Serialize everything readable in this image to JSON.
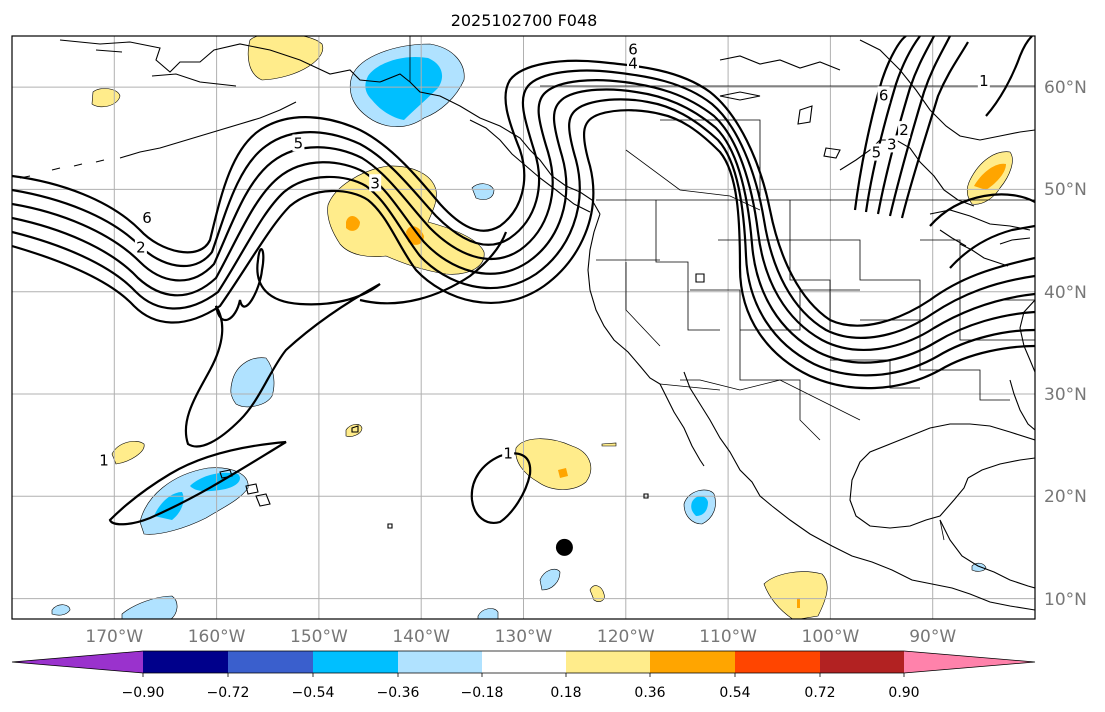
{
  "title": "2025102700 F048",
  "map": {
    "lon_min": -180,
    "lon_max": -80,
    "lat_min": 8,
    "lat_max": 65,
    "gridlines": true,
    "lon_ticks": [
      {
        "value": -170,
        "label": "170°W"
      },
      {
        "value": -160,
        "label": "160°W"
      },
      {
        "value": -150,
        "label": "150°W"
      },
      {
        "value": -140,
        "label": "140°W"
      },
      {
        "value": -130,
        "label": "130°W"
      },
      {
        "value": -120,
        "label": "120°W"
      },
      {
        "value": -110,
        "label": "110°W"
      },
      {
        "value": -100,
        "label": "100°W"
      },
      {
        "value": -90,
        "label": "90°W"
      }
    ],
    "lat_ticks": [
      {
        "value": 60,
        "label": "60°N"
      },
      {
        "value": 50,
        "label": "50°N"
      },
      {
        "value": 40,
        "label": "40°N"
      },
      {
        "value": 30,
        "label": "30°N"
      },
      {
        "value": 20,
        "label": "20°N"
      },
      {
        "value": 10,
        "label": "10°N"
      }
    ],
    "marker": {
      "name": "storm-position-marker",
      "lon": -126,
      "lat": 15,
      "color": "#000000"
    },
    "contour_labels": [
      {
        "text": "6",
        "lon": -166.8,
        "lat": 47.2
      },
      {
        "text": "2",
        "lon": -167.4,
        "lat": 44.3
      },
      {
        "text": "5",
        "lon": -152,
        "lat": 54.5
      },
      {
        "text": "3",
        "lon": -144.5,
        "lat": 50.6
      },
      {
        "text": "6",
        "lon": -119.3,
        "lat": 63.7
      },
      {
        "text": "4",
        "lon": -119.3,
        "lat": 62.3
      },
      {
        "text": "1",
        "lon": -171,
        "lat": 23.5
      },
      {
        "text": "1",
        "lon": -131.5,
        "lat": 24.2
      },
      {
        "text": "6",
        "lon": -94.8,
        "lat": 59.2
      },
      {
        "text": "5",
        "lon": -95.5,
        "lat": 53.6
      },
      {
        "text": "3",
        "lon": -94,
        "lat": 54.4
      },
      {
        "text": "2",
        "lon": -92.8,
        "lat": 55.8
      },
      {
        "text": "1",
        "lon": -85,
        "lat": 60.6
      }
    ]
  },
  "colorbar": {
    "colors": [
      "#9a32cd",
      "#00008b",
      "#3a5fcd",
      "#00bfff",
      "#b0e2ff",
      "#ffffff",
      "#ffec8b",
      "#ffa500",
      "#ff4500",
      "#b22222",
      "#ff82ab"
    ],
    "ticks": [
      "−0.90",
      "−0.72",
      "−0.54",
      "−0.36",
      "−0.18",
      "0.18",
      "0.36",
      "0.54",
      "0.72",
      "0.90"
    ]
  }
}
